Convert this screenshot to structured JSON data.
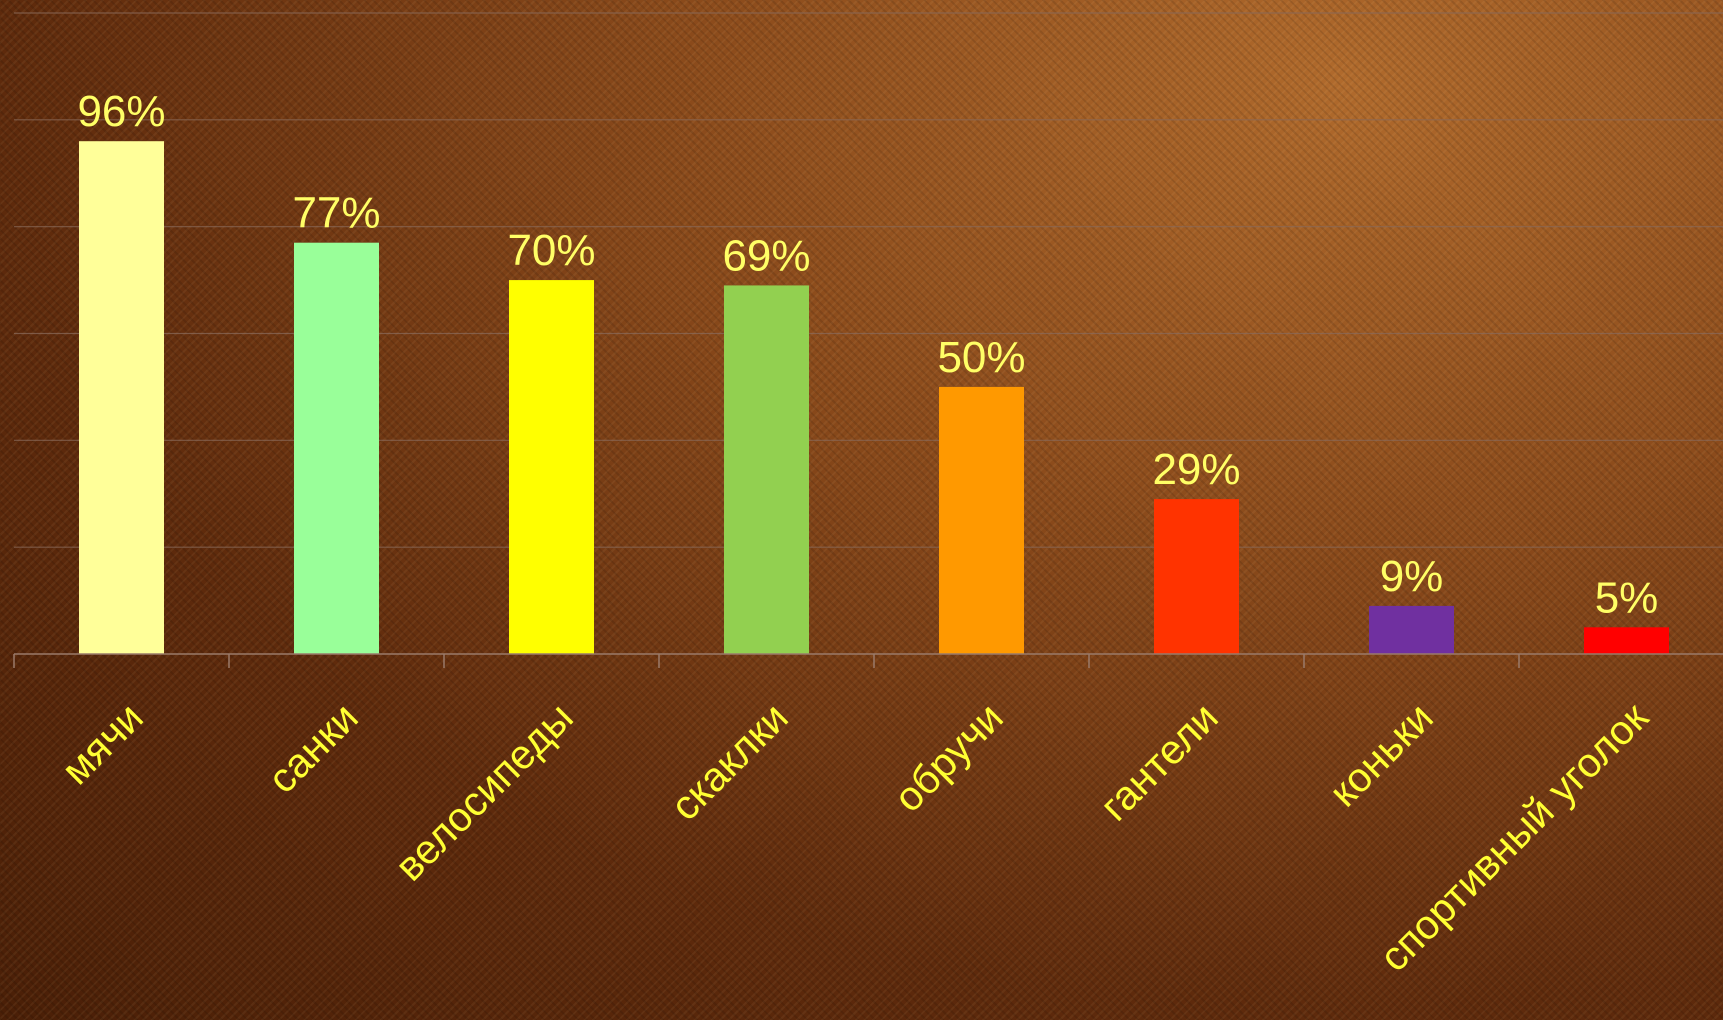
{
  "chart_data": {
    "type": "bar",
    "categories": [
      "мячи",
      "санки",
      "велосипеды",
      "скаклки",
      "обручи",
      "гантели",
      "коньки",
      "спортивный уголок"
    ],
    "values": [
      96,
      77,
      70,
      69,
      50,
      29,
      9,
      5
    ],
    "data_labels": [
      "96%",
      "77%",
      "70%",
      "69%",
      "50%",
      "29%",
      "9%",
      "5%"
    ],
    "colors": [
      "#ffff99",
      "#99ff99",
      "#ffff00",
      "#92d050",
      "#ff9900",
      "#ff3300",
      "#7030a0",
      "#ff0000"
    ],
    "ylim": [
      0,
      120
    ],
    "grid": true,
    "legend": "none",
    "background_color": "#5e2a0c",
    "label_color": "#ffff33"
  }
}
